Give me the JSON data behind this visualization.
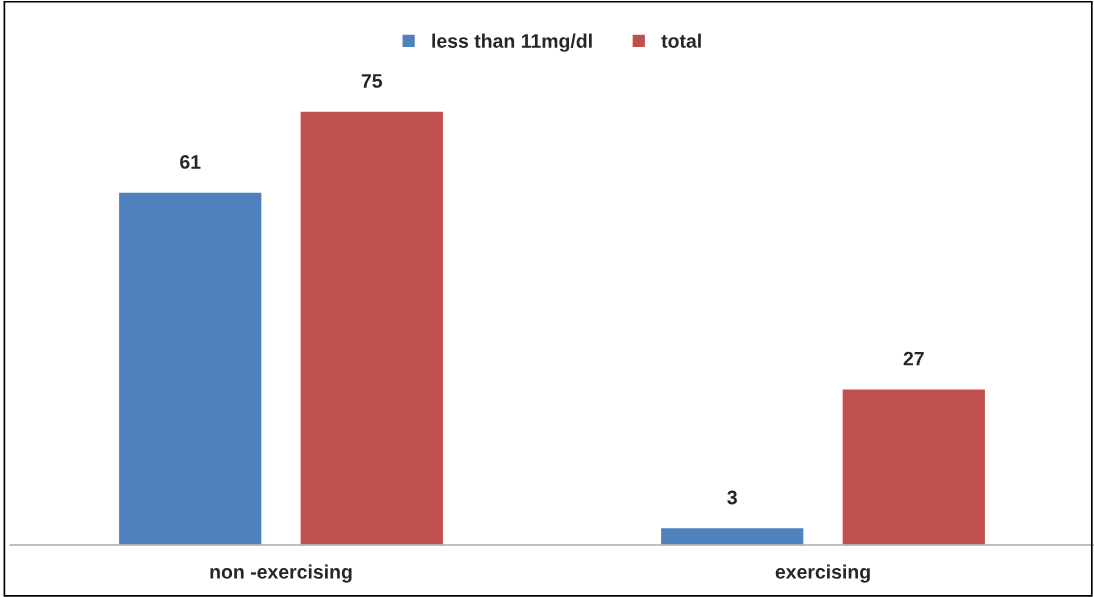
{
  "chart_data": {
    "type": "bar",
    "categories": [
      "non -exercising",
      "exercising"
    ],
    "series": [
      {
        "name": "less than 11mg/dl",
        "color": "#4f81bd",
        "values": [
          61,
          3
        ]
      },
      {
        "name": "total",
        "color": "#c0504d",
        "values": [
          75,
          27
        ]
      }
    ],
    "data_labels": true,
    "legend": "top",
    "grid": false
  }
}
